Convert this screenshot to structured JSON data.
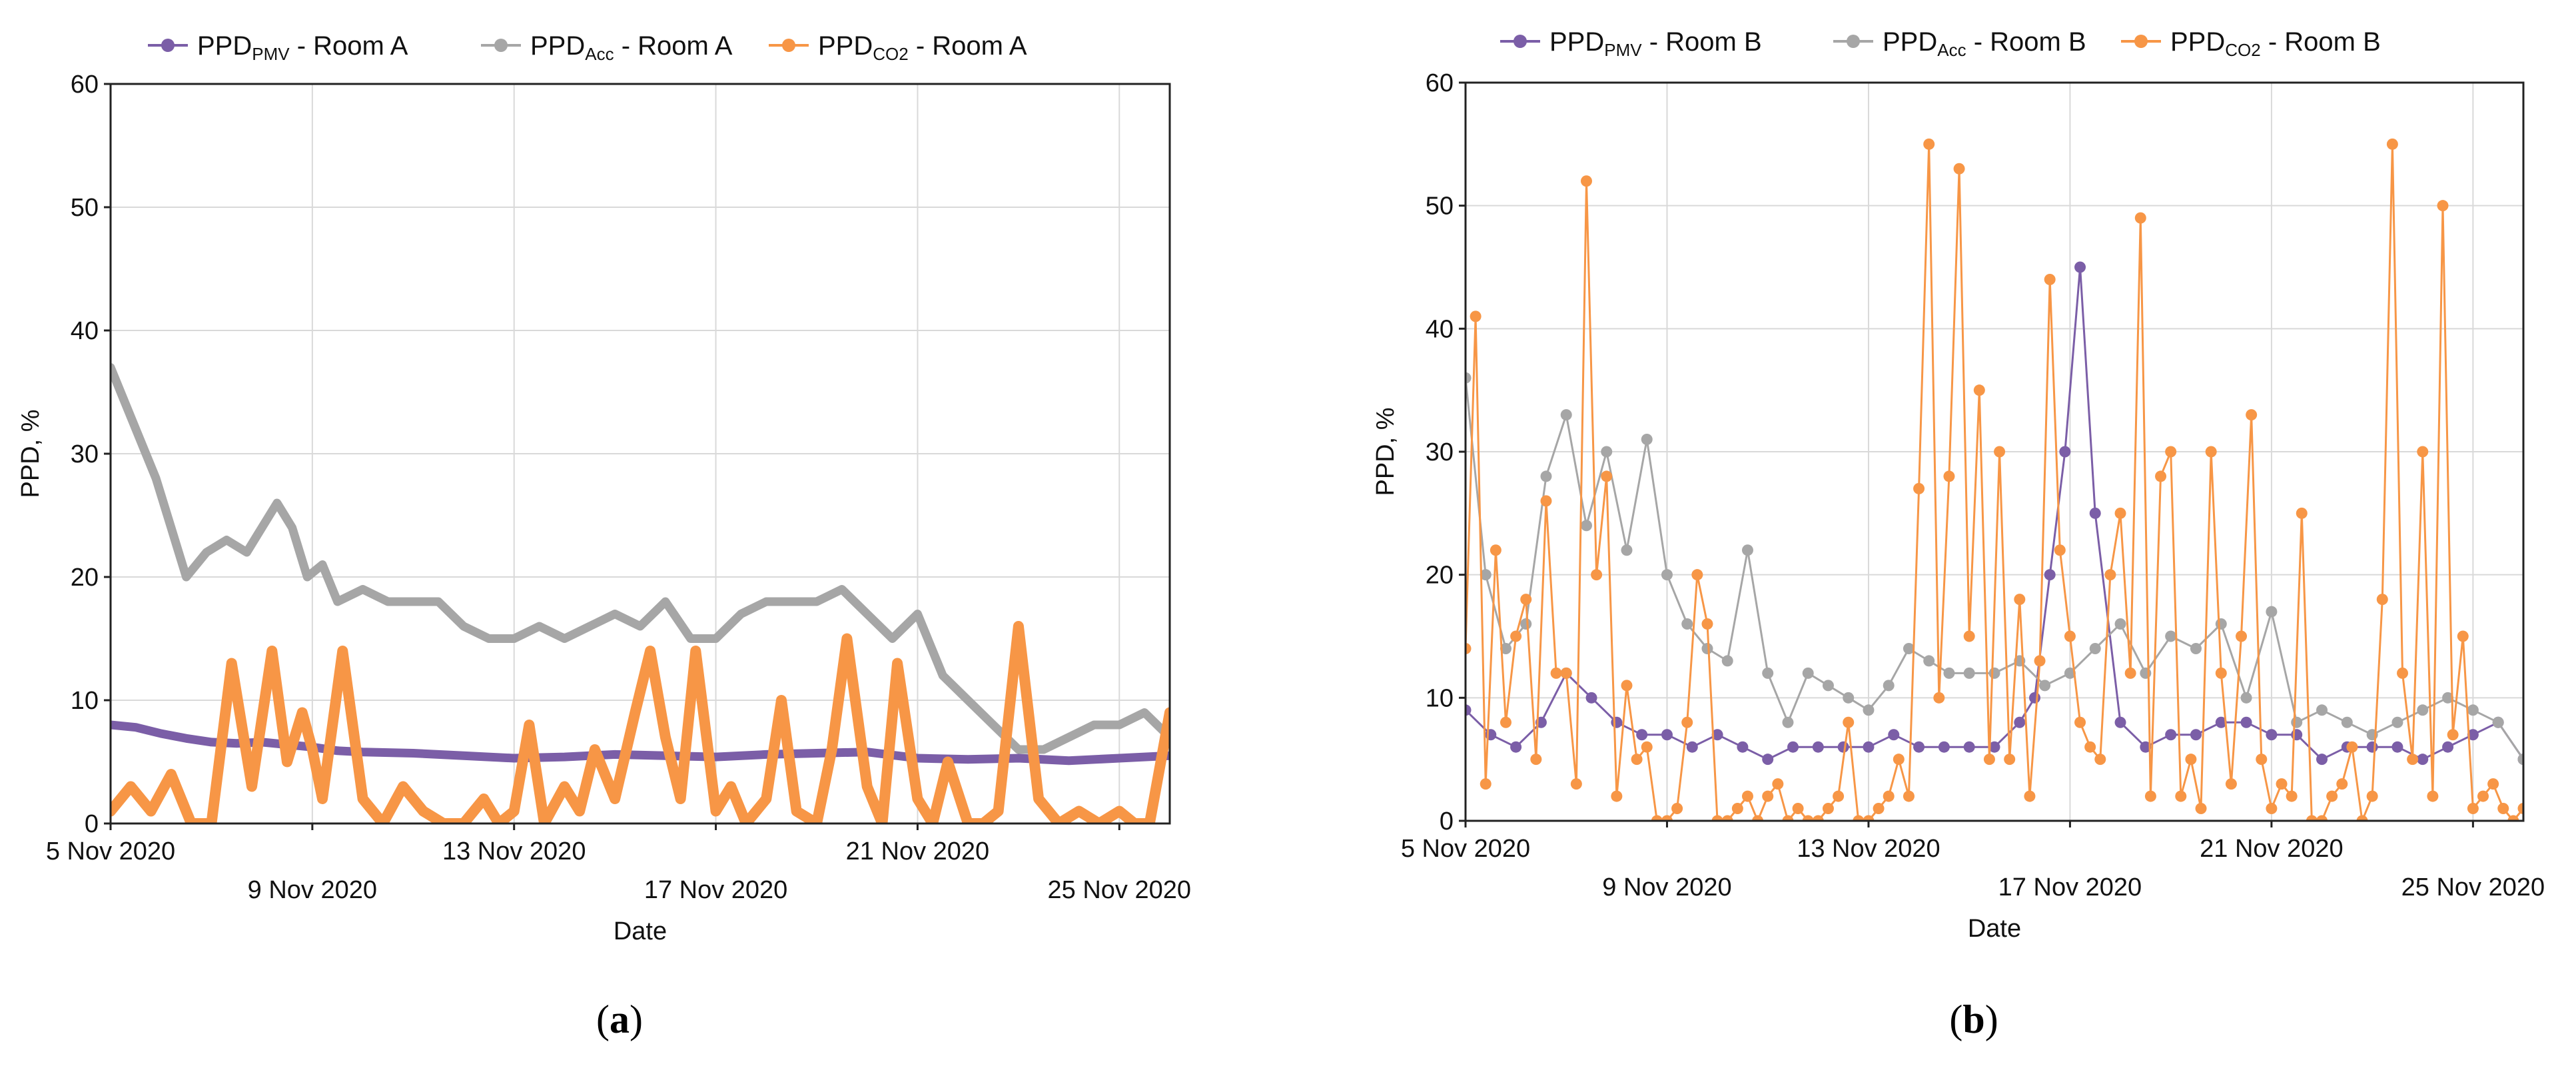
{
  "chart_data": [
    {
      "type": "line",
      "panel_label": "(a)",
      "panel_letter": "a",
      "xlabel": "Date",
      "ylabel": "PPD, %",
      "ylim": [
        0,
        60
      ],
      "yticks": [
        0,
        10,
        20,
        30,
        40,
        50,
        60
      ],
      "xlim": [
        0,
        21
      ],
      "xticks": [
        {
          "x": 0,
          "label": "5 Nov 2020",
          "row": 0
        },
        {
          "x": 4,
          "label": "9 Nov 2020",
          "row": 1
        },
        {
          "x": 8,
          "label": "13 Nov 2020",
          "row": 0
        },
        {
          "x": 12,
          "label": "17 Nov 2020",
          "row": 1
        },
        {
          "x": 16,
          "label": "21 Nov 2020",
          "row": 0
        },
        {
          "x": 20,
          "label": "25 Nov 2020",
          "row": 1
        }
      ],
      "x_unit": "days since 5 Nov 2020",
      "grid": true,
      "legend_position": "top",
      "series": [
        {
          "name": "PPDPMV - Room A",
          "base": "PPD",
          "sub": "PMV",
          "suffix": " - Room A",
          "color": "#7b5ea7",
          "line_width": "medium",
          "x": [
            0,
            0.5,
            1,
            1.5,
            2,
            2.5,
            3,
            3.5,
            4,
            4.5,
            5,
            6,
            7,
            8,
            9,
            10,
            11,
            12,
            13,
            14,
            15,
            16,
            17,
            18,
            19,
            20,
            21
          ],
          "values": [
            8.0,
            7.8,
            7.3,
            6.9,
            6.6,
            6.5,
            6.6,
            6.4,
            6.2,
            5.9,
            5.8,
            5.7,
            5.5,
            5.3,
            5.4,
            5.6,
            5.5,
            5.4,
            5.6,
            5.7,
            5.8,
            5.3,
            5.2,
            5.3,
            5.1,
            5.3,
            5.5
          ]
        },
        {
          "name": "PPDAcc - Room A",
          "base": "PPD",
          "sub": "Acc",
          "suffix": " - Room A",
          "color": "#a6a6a6",
          "line_width": "medium",
          "x": [
            0,
            0.3,
            0.6,
            0.9,
            1.2,
            1.5,
            1.9,
            2.3,
            2.7,
            3.0,
            3.3,
            3.6,
            3.9,
            4.2,
            4.5,
            5,
            5.5,
            6,
            6.5,
            7,
            7.5,
            8,
            8.5,
            9,
            9.5,
            10,
            10.5,
            11,
            11.5,
            12,
            12.5,
            13,
            13.5,
            14,
            14.5,
            15,
            15.5,
            16,
            16.5,
            17,
            17.5,
            18,
            18.5,
            19,
            19.5,
            20,
            20.5,
            21
          ],
          "values": [
            37,
            34,
            31,
            28,
            24,
            20,
            22,
            23,
            22,
            24,
            26,
            24,
            20,
            21,
            18,
            19,
            18,
            18,
            18,
            16,
            15,
            15,
            16,
            15,
            16,
            17,
            16,
            18,
            15,
            15,
            17,
            18,
            18,
            18,
            19,
            17,
            15,
            17,
            12,
            10,
            8,
            6,
            6,
            7,
            8,
            8,
            9,
            7
          ]
        },
        {
          "name": "PPDCO2 - Room A",
          "base": "PPD",
          "sub": "CO2",
          "suffix": " - Room A",
          "color": "#f79646",
          "line_width": "thick",
          "x": [
            0,
            0.4,
            0.8,
            1.2,
            1.6,
            2.0,
            2.4,
            2.8,
            3.2,
            3.5,
            3.8,
            4.0,
            4.2,
            4.6,
            5.0,
            5.4,
            5.8,
            6.2,
            6.6,
            7.0,
            7.4,
            7.7,
            8.0,
            8.3,
            8.6,
            9.0,
            9.3,
            9.6,
            10.0,
            10.4,
            10.7,
            11.0,
            11.3,
            11.6,
            12.0,
            12.3,
            12.6,
            13.0,
            13.3,
            13.6,
            14.0,
            14.3,
            14.6,
            15.0,
            15.3,
            15.6,
            16.0,
            16.3,
            16.6,
            17.0,
            17.3,
            17.6,
            18.0,
            18.4,
            18.8,
            19.2,
            19.6,
            20.0,
            20.3,
            20.6,
            21.0
          ],
          "values": [
            1,
            3,
            1,
            4,
            0,
            0,
            13,
            3,
            14,
            5,
            9,
            6,
            2,
            14,
            2,
            0,
            3,
            1,
            0,
            0,
            2,
            0,
            1,
            8,
            0,
            3,
            1,
            6,
            2,
            9,
            14,
            7,
            2,
            14,
            1,
            3,
            0,
            2,
            10,
            1,
            0,
            6,
            15,
            3,
            0,
            13,
            2,
            0,
            5,
            0,
            0,
            1,
            16,
            2,
            0,
            1,
            0,
            1,
            0,
            0,
            9
          ]
        }
      ]
    },
    {
      "type": "line",
      "panel_label": "(b)",
      "panel_letter": "b",
      "xlabel": "Date",
      "ylabel": "PPD, %",
      "ylim": [
        0,
        60
      ],
      "yticks": [
        0,
        10,
        20,
        30,
        40,
        50,
        60
      ],
      "xlim": [
        0,
        21
      ],
      "xticks": [
        {
          "x": 0,
          "label": "5 Nov 2020",
          "row": 0
        },
        {
          "x": 4,
          "label": "9 Nov 2020",
          "row": 1
        },
        {
          "x": 8,
          "label": "13 Nov 2020",
          "row": 0
        },
        {
          "x": 12,
          "label": "17 Nov 2020",
          "row": 1
        },
        {
          "x": 16,
          "label": "21 Nov 2020",
          "row": 0
        },
        {
          "x": 20,
          "label": "25 Nov 2020",
          "row": 1
        }
      ],
      "x_unit": "days since 5 Nov 2020",
      "grid": true,
      "legend_position": "top",
      "series": [
        {
          "name": "PPDPMV - Room B",
          "base": "PPD",
          "sub": "PMV",
          "suffix": " - Room B",
          "color": "#7b5ea7",
          "markers": true,
          "x": [
            0,
            0.5,
            1,
            1.5,
            2,
            2.5,
            3,
            3.5,
            4,
            4.5,
            5,
            5.5,
            6,
            6.5,
            7,
            7.5,
            8,
            8.5,
            9,
            9.5,
            10,
            10.5,
            11,
            11.3,
            11.6,
            11.9,
            12.2,
            12.5,
            13,
            13.5,
            14,
            14.5,
            15,
            15.5,
            16,
            16.5,
            17,
            17.5,
            18,
            18.5,
            19,
            19.5,
            20,
            20.5,
            21
          ],
          "values": [
            9,
            7,
            6,
            8,
            12,
            10,
            8,
            7,
            7,
            6,
            7,
            6,
            5,
            6,
            6,
            6,
            6,
            7,
            6,
            6,
            6,
            6,
            8,
            10,
            20,
            30,
            45,
            25,
            8,
            6,
            7,
            7,
            8,
            8,
            7,
            7,
            5,
            6,
            6,
            6,
            5,
            6,
            7,
            8,
            5
          ]
        },
        {
          "name": "PPDAcc - Room B",
          "base": "PPD",
          "sub": "Acc",
          "suffix": " - Room B",
          "color": "#a6a6a6",
          "markers": true,
          "x": [
            0,
            0.4,
            0.8,
            1.2,
            1.6,
            2.0,
            2.4,
            2.8,
            3.2,
            3.6,
            4.0,
            4.4,
            4.8,
            5.2,
            5.6,
            6.0,
            6.4,
            6.8,
            7.2,
            7.6,
            8.0,
            8.4,
            8.8,
            9.2,
            9.6,
            10.0,
            10.5,
            11.0,
            11.5,
            12.0,
            12.5,
            13.0,
            13.5,
            14.0,
            14.5,
            15.0,
            15.5,
            16.0,
            16.5,
            17.0,
            17.5,
            18.0,
            18.5,
            19.0,
            19.5,
            20.0,
            20.5,
            21.0
          ],
          "values": [
            36,
            20,
            14,
            16,
            28,
            33,
            24,
            30,
            22,
            31,
            20,
            16,
            14,
            13,
            22,
            12,
            8,
            12,
            11,
            10,
            9,
            11,
            14,
            13,
            12,
            12,
            12,
            13,
            11,
            12,
            14,
            16,
            12,
            15,
            14,
            16,
            10,
            17,
            8,
            9,
            8,
            7,
            8,
            9,
            10,
            9,
            8,
            5
          ]
        },
        {
          "name": "PPDCO2 - Room B",
          "base": "PPD",
          "sub": "CO2",
          "suffix": " - Room B",
          "color": "#f79646",
          "markers": true,
          "x": [
            0,
            0.2,
            0.4,
            0.6,
            0.8,
            1.0,
            1.2,
            1.4,
            1.6,
            1.8,
            2.0,
            2.2,
            2.4,
            2.6,
            2.8,
            3.0,
            3.2,
            3.4,
            3.6,
            3.8,
            4.0,
            4.2,
            4.4,
            4.6,
            4.8,
            5.0,
            5.2,
            5.4,
            5.6,
            5.8,
            6.0,
            6.2,
            6.4,
            6.6,
            6.8,
            7.0,
            7.2,
            7.4,
            7.6,
            7.8,
            8.0,
            8.2,
            8.4,
            8.6,
            8.8,
            9.0,
            9.2,
            9.4,
            9.6,
            9.8,
            10.0,
            10.2,
            10.4,
            10.6,
            10.8,
            11.0,
            11.2,
            11.4,
            11.6,
            11.8,
            12.0,
            12.2,
            12.4,
            12.6,
            12.8,
            13.0,
            13.2,
            13.4,
            13.6,
            13.8,
            14.0,
            14.2,
            14.4,
            14.6,
            14.8,
            15.0,
            15.2,
            15.4,
            15.6,
            15.8,
            16.0,
            16.2,
            16.4,
            16.6,
            16.8,
            17.0,
            17.2,
            17.4,
            17.6,
            17.8,
            18.0,
            18.2,
            18.4,
            18.6,
            18.8,
            19.0,
            19.2,
            19.4,
            19.6,
            19.8,
            20.0,
            20.2,
            20.4,
            20.6,
            20.8,
            21.0
          ],
          "values": [
            14,
            41,
            3,
            22,
            8,
            15,
            18,
            5,
            26,
            12,
            12,
            3,
            52,
            20,
            28,
            2,
            11,
            5,
            6,
            0,
            0,
            1,
            8,
            20,
            16,
            0,
            0,
            1,
            2,
            0,
            2,
            3,
            0,
            1,
            0,
            0,
            1,
            2,
            8,
            0,
            0,
            1,
            2,
            5,
            2,
            27,
            55,
            10,
            28,
            53,
            15,
            35,
            5,
            30,
            5,
            18,
            2,
            13,
            44,
            22,
            15,
            8,
            6,
            5,
            20,
            25,
            12,
            49,
            2,
            28,
            30,
            2,
            5,
            1,
            30,
            12,
            3,
            15,
            33,
            5,
            1,
            3,
            2,
            25,
            0,
            0,
            2,
            3,
            6,
            0,
            2,
            18,
            55,
            12,
            5,
            30,
            2,
            50,
            7,
            15,
            1,
            2,
            3,
            1,
            0,
            1
          ]
        }
      ]
    }
  ]
}
